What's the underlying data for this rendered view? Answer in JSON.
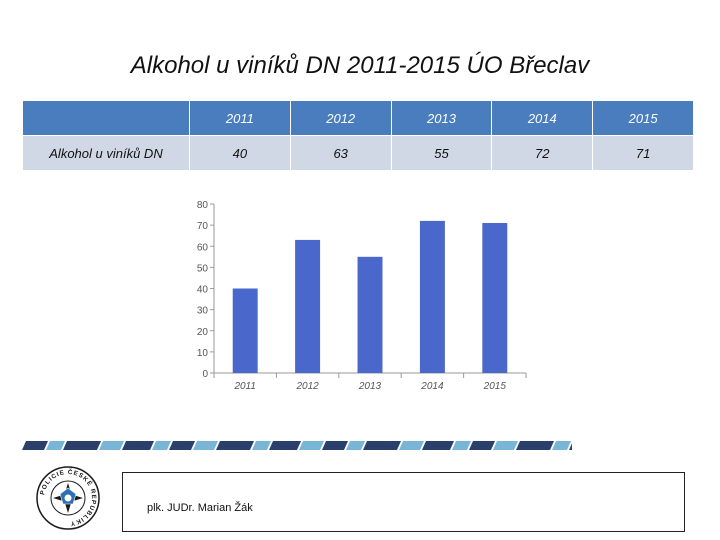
{
  "slide": {
    "title": "Alkohol u viníků DN 2011-2015 ÚO Břeclav",
    "footer": "plk. JUDr. Marian Žák"
  },
  "table": {
    "header": [
      "",
      "2011",
      "2012",
      "2013",
      "2014",
      "2015"
    ],
    "row_label": "Alkohol u viníků DN",
    "values": [
      "40",
      "63",
      "55",
      "72",
      "71"
    ]
  },
  "chart_data": {
    "type": "bar",
    "categories": [
      "2011",
      "2012",
      "2013",
      "2014",
      "2015"
    ],
    "values": [
      40,
      63,
      55,
      72,
      71
    ],
    "title": "",
    "xlabel": "",
    "ylabel": "",
    "ylim": [
      0,
      80
    ],
    "yticks": [
      0,
      10,
      20,
      30,
      40,
      50,
      60,
      70,
      80
    ],
    "grid": false,
    "legend": "none",
    "bar_color": "#4a67cc"
  },
  "logo": {
    "icon": "police-badge-icon",
    "text": "POLICIE ČESKÉ REPUBLIKY"
  },
  "colors": {
    "table_header": "#4a7dbd",
    "table_row": "#d0d8e6",
    "stripe_dark": "#2a3f6a",
    "stripe_light": "#79b6d6"
  }
}
